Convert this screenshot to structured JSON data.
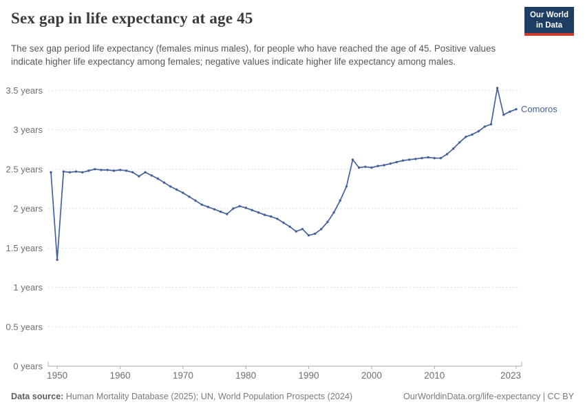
{
  "header": {
    "title": "Sex gap in life expectancy at age 45",
    "subtitle": "The sex gap period life expectancy (females minus males), for people who have reached the age of 45. Positive values indicate higher life expectancy among females; negative values indicate higher life expectancy among males."
  },
  "logo": {
    "line1": "Our World",
    "line2": "in Data",
    "bg_color": "#1d3d63",
    "accent_color": "#cc3b2c"
  },
  "chart_data": {
    "type": "line",
    "title": "Sex gap in life expectancy at age 45",
    "xlabel": "",
    "ylabel": "",
    "xlim": [
      1949,
      2023
    ],
    "ylim": [
      0,
      3.5
    ],
    "grid": "horizontal-dashed",
    "legend_position": "end-of-line-label",
    "x_ticks": [
      1950,
      1960,
      1970,
      1980,
      1990,
      2000,
      2010,
      2023
    ],
    "y_ticks": [
      0,
      0.5,
      1,
      1.5,
      2,
      2.5,
      3,
      3.5
    ],
    "y_tick_suffix": " years",
    "series": [
      {
        "name": "Comoros",
        "color": "#44619b",
        "years": [
          1949,
          1950,
          1951,
          1952,
          1953,
          1954,
          1955,
          1956,
          1957,
          1958,
          1959,
          1960,
          1961,
          1962,
          1963,
          1964,
          1965,
          1966,
          1967,
          1968,
          1969,
          1970,
          1971,
          1972,
          1973,
          1974,
          1975,
          1976,
          1977,
          1978,
          1979,
          1980,
          1981,
          1982,
          1983,
          1984,
          1985,
          1986,
          1987,
          1988,
          1989,
          1990,
          1991,
          1992,
          1993,
          1994,
          1995,
          1996,
          1997,
          1998,
          1999,
          2000,
          2001,
          2002,
          2003,
          2004,
          2005,
          2006,
          2007,
          2008,
          2009,
          2010,
          2011,
          2012,
          2013,
          2014,
          2015,
          2016,
          2017,
          2018,
          2019,
          2020,
          2021,
          2022,
          2023
        ],
        "values": [
          2.46,
          1.35,
          2.47,
          2.46,
          2.47,
          2.46,
          2.48,
          2.5,
          2.49,
          2.49,
          2.48,
          2.49,
          2.48,
          2.46,
          2.41,
          2.46,
          2.42,
          2.38,
          2.33,
          2.28,
          2.24,
          2.2,
          2.15,
          2.1,
          2.05,
          2.02,
          1.99,
          1.96,
          1.93,
          2.0,
          2.03,
          2.01,
          1.98,
          1.95,
          1.92,
          1.9,
          1.87,
          1.82,
          1.77,
          1.71,
          1.74,
          1.66,
          1.68,
          1.74,
          1.83,
          1.95,
          2.1,
          2.28,
          2.62,
          2.52,
          2.53,
          2.52,
          2.54,
          2.55,
          2.57,
          2.59,
          2.61,
          2.62,
          2.63,
          2.64,
          2.65,
          2.64,
          2.64,
          2.69,
          2.76,
          2.84,
          2.91,
          2.94,
          2.98,
          3.04,
          3.07,
          3.53,
          3.19,
          3.23,
          3.26
        ]
      }
    ],
    "colors": {
      "grid_line": "#dcdcdc",
      "axis_line": "#a8a8a8",
      "tick_label": "#6e6e6e"
    }
  },
  "footer": {
    "data_source_label": "Data source:",
    "data_source_text": "Human Mortality Database (2025); UN, World Population Prospects (2024)",
    "credit": "OurWorldinData.org/life-expectancy | CC BY"
  }
}
